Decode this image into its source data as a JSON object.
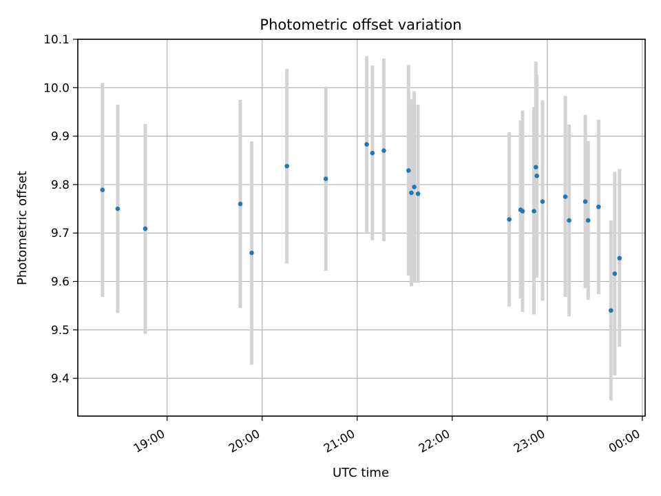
{
  "chart_data": {
    "type": "scatter",
    "title": "Photometric offset variation",
    "xlabel": "UTC time",
    "ylabel": "Photometric offset",
    "x_unit": "hours UTC",
    "xlim": [
      18.06,
      24.03
    ],
    "ylim": [
      9.322,
      10.1
    ],
    "grid": true,
    "xticks": [
      {
        "value": 19,
        "label": "19:00"
      },
      {
        "value": 20,
        "label": "20:00"
      },
      {
        "value": 21,
        "label": "21:00"
      },
      {
        "value": 22,
        "label": "22:00"
      },
      {
        "value": 23,
        "label": "23:00"
      },
      {
        "value": 24,
        "label": "00:00"
      }
    ],
    "yticks": [
      {
        "value": 9.4,
        "label": "9.4"
      },
      {
        "value": 9.5,
        "label": "9.5"
      },
      {
        "value": 9.6,
        "label": "9.6"
      },
      {
        "value": 9.7,
        "label": "9.7"
      },
      {
        "value": 9.8,
        "label": "9.8"
      },
      {
        "value": 9.9,
        "label": "9.9"
      },
      {
        "value": 10.0,
        "label": "10.0"
      },
      {
        "value": 10.1,
        "label": "10.1"
      }
    ],
    "colors": {
      "point": "#1f77b4",
      "errorbar": "#d3d3d3",
      "grid": "#b0b0b0"
    },
    "series": [
      {
        "points": [
          {
            "x": 18.32,
            "y": 9.789,
            "lo": 9.568,
            "hi": 10.01
          },
          {
            "x": 18.48,
            "y": 9.75,
            "lo": 9.535,
            "hi": 9.965
          },
          {
            "x": 18.77,
            "y": 9.709,
            "lo": 9.492,
            "hi": 9.925
          },
          {
            "x": 19.77,
            "y": 9.76,
            "lo": 9.545,
            "hi": 9.975
          },
          {
            "x": 19.89,
            "y": 9.659,
            "lo": 9.428,
            "hi": 9.889
          },
          {
            "x": 20.26,
            "y": 9.838,
            "lo": 9.637,
            "hi": 10.039
          },
          {
            "x": 20.67,
            "y": 9.812,
            "lo": 9.622,
            "hi": 10.002
          },
          {
            "x": 21.1,
            "y": 9.883,
            "lo": 9.702,
            "hi": 10.065
          },
          {
            "x": 21.16,
            "y": 9.865,
            "lo": 9.685,
            "hi": 10.046
          },
          {
            "x": 21.28,
            "y": 9.87,
            "lo": 9.683,
            "hi": 10.06
          },
          {
            "x": 21.54,
            "y": 9.829,
            "lo": 9.612,
            "hi": 10.047
          },
          {
            "x": 21.57,
            "y": 9.783,
            "lo": 9.59,
            "hi": 9.976
          },
          {
            "x": 21.6,
            "y": 9.795,
            "lo": 9.597,
            "hi": 9.993
          },
          {
            "x": 21.64,
            "y": 9.781,
            "lo": 9.597,
            "hi": 9.965
          },
          {
            "x": 22.6,
            "y": 9.728,
            "lo": 9.548,
            "hi": 9.908
          },
          {
            "x": 22.72,
            "y": 9.748,
            "lo": 9.565,
            "hi": 9.932
          },
          {
            "x": 22.74,
            "y": 9.745,
            "lo": 9.537,
            "hi": 9.953
          },
          {
            "x": 22.86,
            "y": 9.745,
            "lo": 9.532,
            "hi": 9.96
          },
          {
            "x": 22.88,
            "y": 9.836,
            "lo": 9.62,
            "hi": 10.054
          },
          {
            "x": 22.89,
            "y": 9.818,
            "lo": 9.608,
            "hi": 10.027
          },
          {
            "x": 22.95,
            "y": 9.765,
            "lo": 9.56,
            "hi": 9.974
          },
          {
            "x": 23.19,
            "y": 9.775,
            "lo": 9.568,
            "hi": 9.983
          },
          {
            "x": 23.23,
            "y": 9.726,
            "lo": 9.528,
            "hi": 9.924
          },
          {
            "x": 23.4,
            "y": 9.765,
            "lo": 9.586,
            "hi": 9.944
          },
          {
            "x": 23.43,
            "y": 9.726,
            "lo": 9.562,
            "hi": 9.89
          },
          {
            "x": 23.54,
            "y": 9.754,
            "lo": 9.574,
            "hi": 9.934
          },
          {
            "x": 23.67,
            "y": 9.54,
            "lo": 9.354,
            "hi": 9.726
          },
          {
            "x": 23.71,
            "y": 9.616,
            "lo": 9.406,
            "hi": 9.826
          },
          {
            "x": 23.76,
            "y": 9.648,
            "lo": 9.465,
            "hi": 9.832
          }
        ]
      }
    ]
  }
}
